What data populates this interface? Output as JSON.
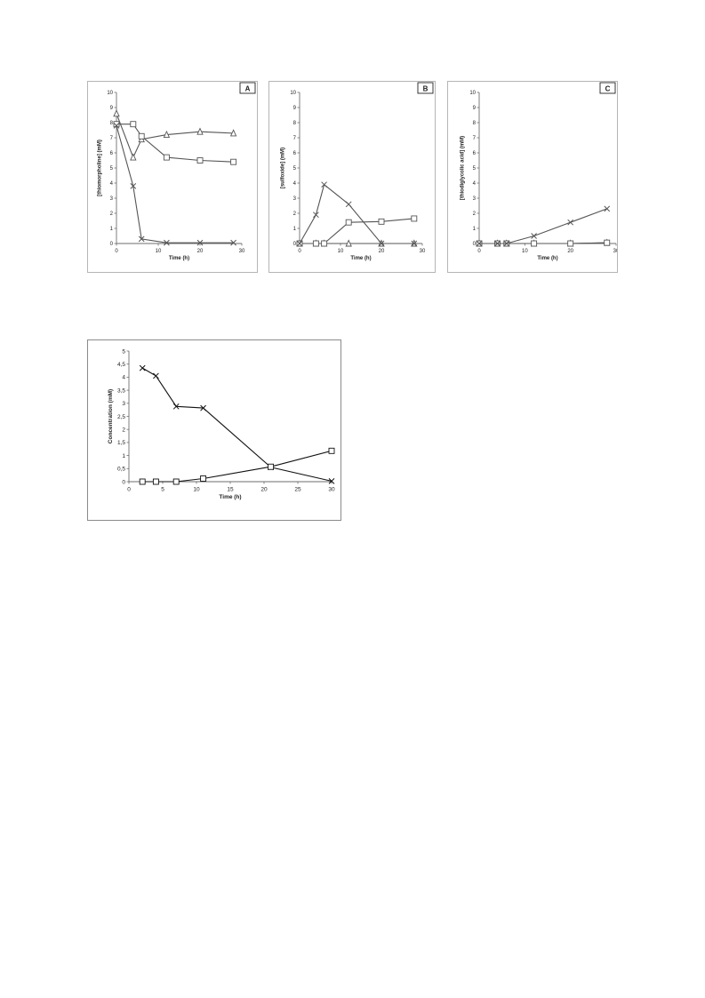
{
  "colors": {
    "axis": "#6e6e6e",
    "series": "#555555",
    "series_dark": "#111111"
  },
  "chart_data": [
    {
      "type": "line",
      "panel_label": "A",
      "xlabel": "Time (h)",
      "ylabel": "[thiomorpholine] (mM)",
      "xlim": [
        0,
        30
      ],
      "ylim": [
        0,
        10
      ],
      "xticks": [
        "0",
        "10",
        "20",
        "30"
      ],
      "yticks": [
        "0",
        "1",
        "2",
        "3",
        "4",
        "5",
        "6",
        "7",
        "8",
        "9",
        "10"
      ],
      "grid": false,
      "series": [
        {
          "marker": "triangle",
          "x": [
            0,
            4,
            6,
            12,
            20,
            28
          ],
          "y": [
            8.6,
            5.7,
            6.9,
            7.2,
            7.4,
            7.3
          ]
        },
        {
          "marker": "square",
          "x": [
            0,
            4,
            6,
            12,
            20,
            28
          ],
          "y": [
            7.9,
            7.9,
            7.1,
            5.7,
            5.5,
            5.4
          ]
        },
        {
          "marker": "x",
          "x": [
            0,
            4,
            6,
            12,
            20,
            28
          ],
          "y": [
            7.8,
            3.8,
            0.3,
            0.05,
            0.05,
            0.05
          ]
        }
      ]
    },
    {
      "type": "line",
      "panel_label": "B",
      "xlabel": "Time (h)",
      "ylabel": "[sulfoxide] (mM)",
      "xlim": [
        0,
        30
      ],
      "ylim": [
        0,
        10
      ],
      "xticks": [
        "0",
        "10",
        "20",
        "30"
      ],
      "yticks": [
        "0",
        "1",
        "2",
        "3",
        "4",
        "5",
        "6",
        "7",
        "8",
        "9",
        "10"
      ],
      "grid": false,
      "series": [
        {
          "marker": "triangle",
          "x": [
            0,
            4,
            6,
            12,
            20,
            28
          ],
          "y": [
            0,
            0,
            0,
            0,
            0,
            0
          ]
        },
        {
          "marker": "square",
          "x": [
            0,
            4,
            6,
            12,
            20,
            28
          ],
          "y": [
            0,
            0,
            0,
            1.4,
            1.45,
            1.65
          ]
        },
        {
          "marker": "x",
          "x": [
            0,
            4,
            6,
            12,
            20,
            28
          ],
          "y": [
            0,
            1.9,
            3.9,
            2.6,
            0,
            0
          ]
        }
      ]
    },
    {
      "type": "line",
      "panel_label": "C",
      "xlabel": "Time (h)",
      "ylabel": "[thiodiglycolic acid] (mM)",
      "xlim": [
        0,
        30
      ],
      "ylim": [
        0,
        10
      ],
      "xticks": [
        "0",
        "10",
        "20",
        "30"
      ],
      "yticks": [
        "0",
        "1",
        "2",
        "3",
        "4",
        "5",
        "6",
        "7",
        "8",
        "9",
        "10"
      ],
      "grid": false,
      "series": [
        {
          "marker": "triangle",
          "x": [
            0,
            4,
            6,
            12,
            20,
            28
          ],
          "y": [
            0,
            0,
            0,
            0,
            0,
            0.05
          ]
        },
        {
          "marker": "square",
          "x": [
            0,
            4,
            6,
            12,
            20,
            28
          ],
          "y": [
            0,
            0,
            0,
            0,
            0,
            0.05
          ]
        },
        {
          "marker": "x",
          "x": [
            0,
            4,
            6,
            12,
            20,
            28
          ],
          "y": [
            0,
            0,
            0,
            0.5,
            1.4,
            2.3
          ]
        }
      ]
    },
    {
      "type": "line",
      "panel_label": "",
      "xlabel": "Time (h)",
      "ylabel": "Concentration (mM)",
      "xlim": [
        0,
        30
      ],
      "ylim": [
        0,
        5
      ],
      "xticks": [
        "0",
        "5",
        "10",
        "15",
        "20",
        "25",
        "30"
      ],
      "yticks": [
        "0",
        "0,5",
        "1",
        "1,5",
        "2",
        "2,5",
        "3",
        "3,5",
        "4",
        "4,5",
        "5"
      ],
      "grid": false,
      "series": [
        {
          "marker": "x",
          "x": [
            2,
            4,
            7,
            11,
            21,
            30
          ],
          "y": [
            4.35,
            4.05,
            2.88,
            2.82,
            0.55,
            0.02
          ]
        },
        {
          "marker": "square",
          "x": [
            2,
            4,
            7,
            11,
            21,
            30
          ],
          "y": [
            0,
            0,
            0,
            0.12,
            0.57,
            1.18
          ]
        }
      ]
    }
  ]
}
